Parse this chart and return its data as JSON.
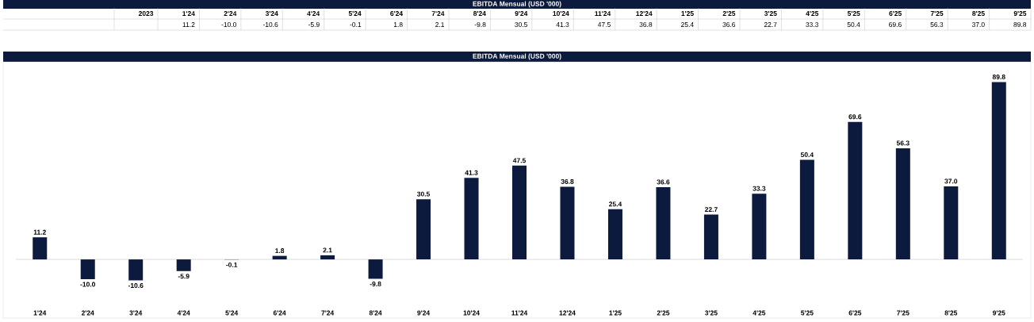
{
  "chart_data": {
    "type": "bar",
    "title": "EBITDA  Mensual (USD '000)",
    "annotations": [
      "EBITDA Mensual (USD '000)",
      "2023"
    ],
    "categories": [
      "1'24",
      "2'24",
      "3'24",
      "4'24",
      "5'24",
      "6'24",
      "7'24",
      "8'24",
      "9'24",
      "10'24",
      "11'24",
      "12'24",
      "1'25",
      "2'25",
      "3'25",
      "4'25",
      "5'25",
      "6'25",
      "7'25",
      "8'25",
      "9'25"
    ],
    "values": [
      11.2,
      -10.0,
      -10.6,
      -5.9,
      -0.1,
      1.8,
      2.1,
      -9.8,
      30.5,
      41.3,
      47.5,
      36.8,
      25.4,
      36.6,
      22.7,
      33.3,
      50.4,
      69.6,
      56.3,
      37.0,
      89.8
    ],
    "value_labels": [
      "11.2",
      "-10.0",
      "-10.6",
      "-5.9",
      "-0.1",
      "1.8",
      "2.1",
      "-9.8",
      "30.5",
      "41.3",
      "47.5",
      "36.8",
      "25.4",
      "36.6",
      "22.7",
      "33.3",
      "50.4",
      "69.6",
      "56.3",
      "37.0",
      "89.8"
    ],
    "color": "#0c1a3d"
  }
}
